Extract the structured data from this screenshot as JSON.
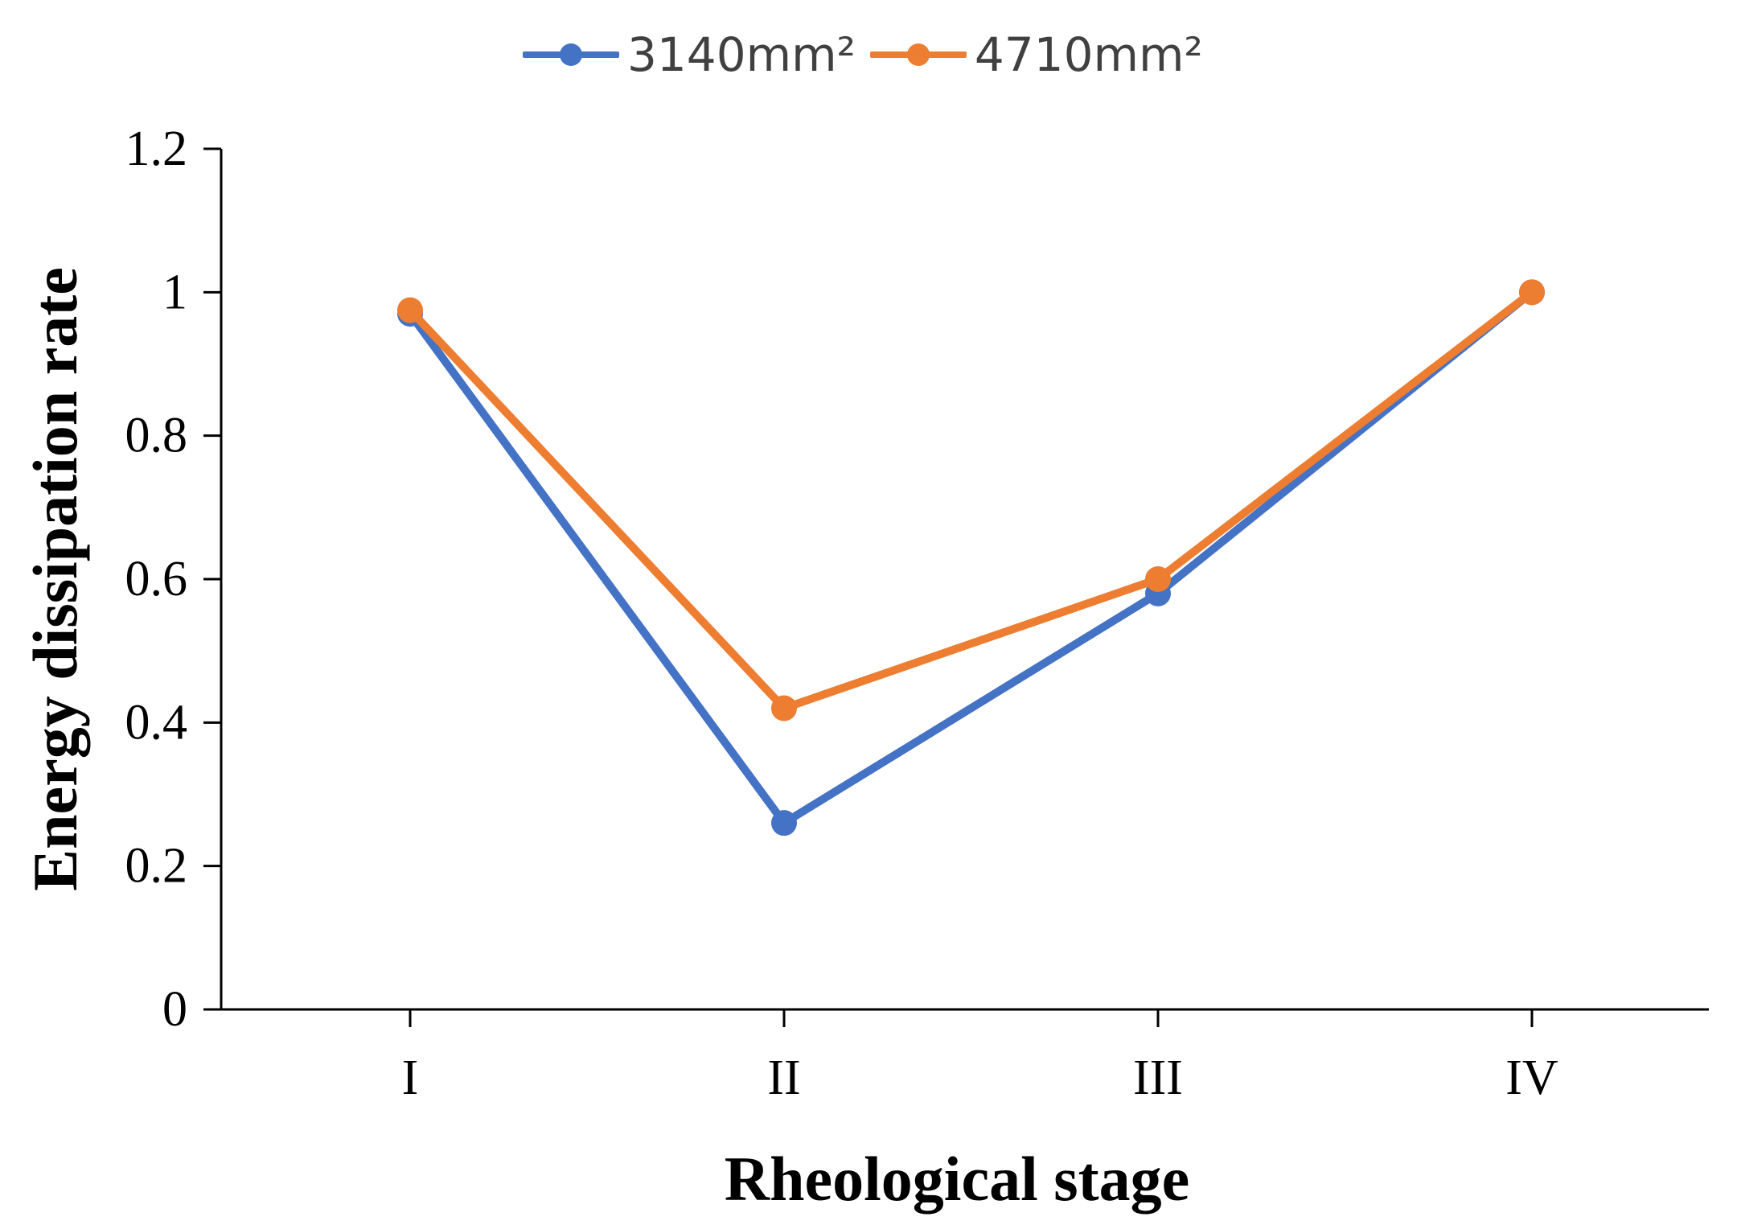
{
  "chart_data": {
    "type": "line",
    "title": "",
    "xlabel": "Rheological stage",
    "ylabel": "Energy dissipation rate",
    "categories": [
      "I",
      "II",
      "III",
      "IV"
    ],
    "ylim": [
      0,
      1.2
    ],
    "yticks": [
      "0",
      "0.2",
      "0.4",
      "0.6",
      "0.8",
      "1",
      "1.2"
    ],
    "grid": false,
    "legend_position": "top-center",
    "series": [
      {
        "name": "3140mm²",
        "color": "#4472C4",
        "values": [
          0.97,
          0.26,
          0.58,
          1.0
        ]
      },
      {
        "name": "4710mm²",
        "color": "#ED7D31",
        "values": [
          0.975,
          0.42,
          0.6,
          1.0
        ]
      }
    ]
  }
}
